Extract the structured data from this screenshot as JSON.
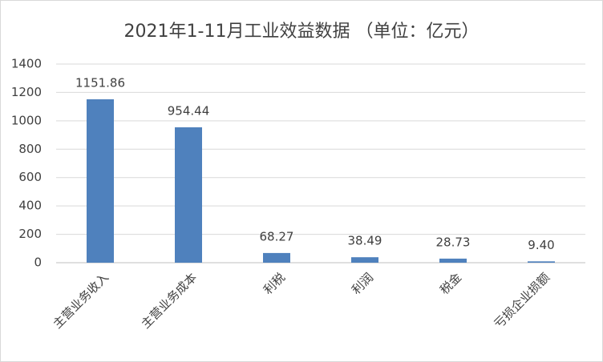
{
  "chart_data": {
    "type": "bar",
    "title": "2021年1-11月工业效益数据 （单位：亿元）",
    "categories": [
      "主营业务收入",
      "主营业务成本",
      "利税",
      "利润",
      "税金",
      "亏损企业损额"
    ],
    "values": [
      1151.86,
      954.44,
      68.27,
      38.49,
      28.73,
      9.4
    ],
    "value_labels": [
      "1151.86",
      "954.44",
      "68.27",
      "38.49",
      "28.73",
      "9.40"
    ],
    "color": "#4f81bd",
    "ylim": [
      0,
      1400
    ],
    "yticks": [
      0,
      200,
      400,
      600,
      800,
      1000,
      1200,
      1400
    ],
    "grid": true
  }
}
